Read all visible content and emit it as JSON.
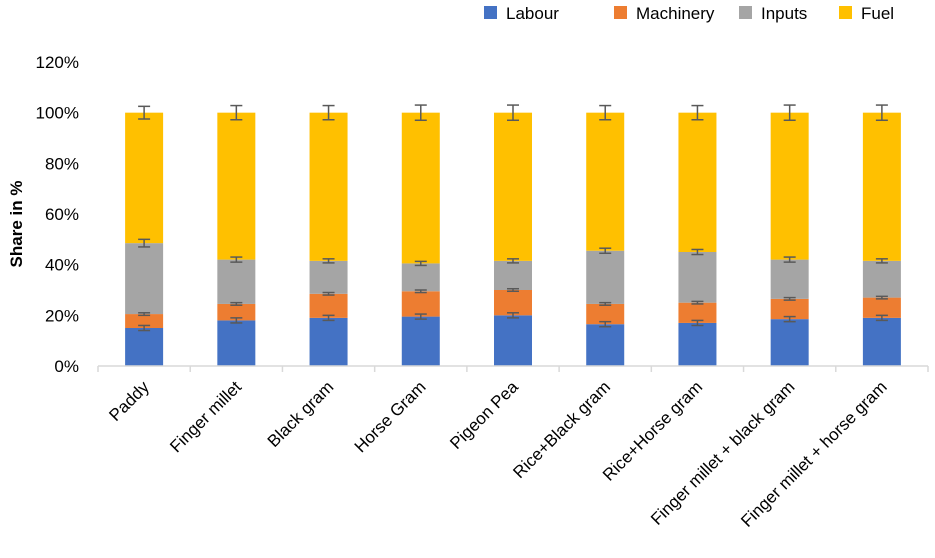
{
  "chart_data": {
    "type": "bar",
    "stacked": true,
    "title": "",
    "xlabel": "",
    "ylabel": "Share in %",
    "ylim": [
      0,
      120
    ],
    "yticks": [
      0,
      20,
      40,
      60,
      80,
      100,
      120
    ],
    "ytick_labels": [
      "0%",
      "20%",
      "40%",
      "60%",
      "80%",
      "100%",
      "120%"
    ],
    "legend_position": "top-right",
    "grid": false,
    "categories": [
      "Paddy",
      "Finger millet",
      "Black gram",
      "Horse Gram",
      "Pigeon Pea",
      "Rice+Black gram",
      "Rice+Horse gram",
      "Finger millet + black gram",
      "Finger millet + horse gram"
    ],
    "series": [
      {
        "name": "Labour",
        "color": "#4472C4",
        "values": [
          15,
          18,
          19,
          19.5,
          20,
          16.5,
          17,
          18.5,
          19
        ],
        "errors": [
          1,
          1,
          1,
          1,
          1,
          1,
          1,
          1,
          1
        ]
      },
      {
        "name": "Machinery",
        "color": "#ED7D31",
        "values": [
          5.5,
          6.5,
          9.5,
          10,
          10,
          8,
          8,
          8,
          8
        ],
        "errors": [
          0.5,
          0.5,
          0.5,
          0.5,
          0.5,
          0.5,
          0.5,
          0.5,
          0.5
        ]
      },
      {
        "name": "Inputs",
        "color": "#A5A5A5",
        "values": [
          28,
          17.5,
          13,
          11,
          11.5,
          21,
          20,
          15.5,
          14.5
        ],
        "errors": [
          1.5,
          1,
          0.8,
          0.8,
          0.8,
          1,
          1,
          1,
          0.8
        ]
      },
      {
        "name": "Fuel",
        "color": "#FFC000",
        "values": [
          51.5,
          58,
          58.5,
          59.5,
          58.5,
          54.5,
          55,
          58,
          58.5
        ],
        "errors": [
          2.5,
          2.8,
          2.8,
          3,
          3,
          2.8,
          2.8,
          3,
          3
        ]
      }
    ]
  }
}
